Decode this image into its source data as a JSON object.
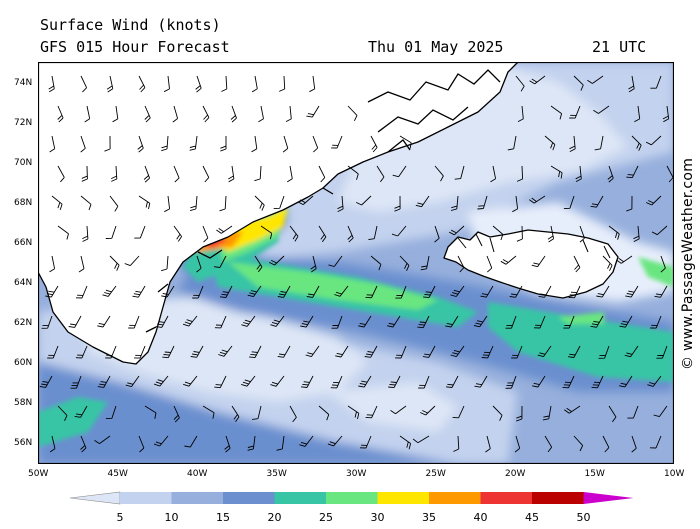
{
  "header": {
    "title": "Surface Wind (knots)",
    "subtitle": "GFS 015 Hour Forecast",
    "date": "Thu 01 May 2025",
    "time": "21 UTC"
  },
  "map": {
    "lat_labels": [
      "74N",
      "72N",
      "70N",
      "68N",
      "66N",
      "64N",
      "62N",
      "60N",
      "58N",
      "56N"
    ],
    "lon_labels": [
      "50W",
      "45W",
      "40W",
      "35W",
      "30W",
      "25W",
      "20W",
      "15W",
      "10W"
    ],
    "lat_range": [
      55,
      75
    ],
    "lon_range": [
      -50,
      -10
    ],
    "features": [
      "greenland-coast",
      "iceland",
      "wind-barbs",
      "wind-speed-shading"
    ]
  },
  "legend": {
    "labels": [
      "5",
      "10",
      "15",
      "20",
      "25",
      "30",
      "35",
      "40",
      "45",
      "50"
    ],
    "colors": [
      "#dde6f6",
      "#c3d2ee",
      "#96afdc",
      "#6b8fcf",
      "#37c5a5",
      "#69e680",
      "#ffe600",
      "#ff9900",
      "#ee3333",
      "#bb0000",
      "#cc00cc"
    ]
  },
  "credit": "© www.PassageWeather.com"
}
